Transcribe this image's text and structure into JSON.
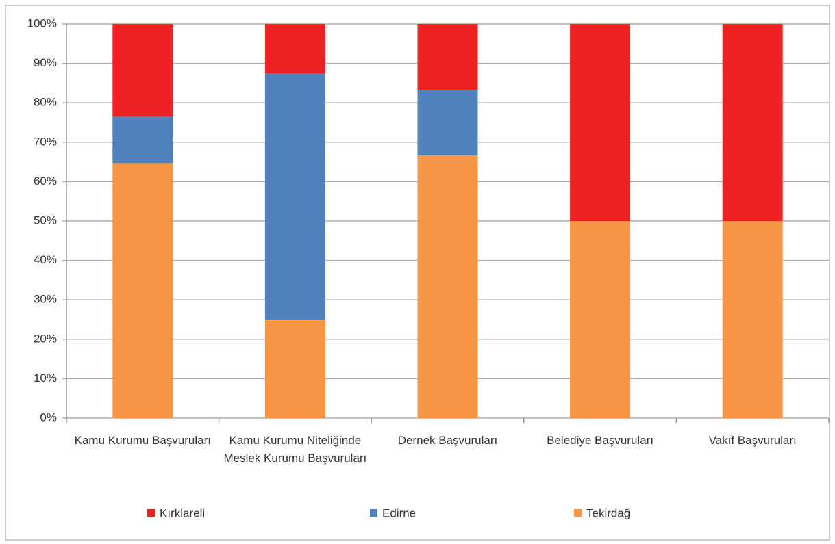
{
  "chart_data": {
    "type": "stacked_bar",
    "categories": [
      "Kamu Kurumu Başvuruları",
      "Kamu Kurumu Niteliğinde Meslek Kurumu Başvuruları",
      "Dernek Başvuruları",
      "Belediye Başvuruları",
      "Vakıf Başvuruları"
    ],
    "series": [
      {
        "name": "Kırklareli",
        "color": "#ee2222",
        "values": [
          23.5,
          12.5,
          16.7,
          50,
          50
        ]
      },
      {
        "name": "Edirne",
        "color": "#4f81bd",
        "values": [
          11.8,
          62.5,
          16.6,
          0,
          0
        ]
      },
      {
        "name": "Tekirdağ",
        "color": "#f79646",
        "values": [
          64.7,
          25,
          66.7,
          50,
          50
        ]
      }
    ],
    "ylim": [
      0,
      100
    ],
    "yticks": [
      {
        "value": 0,
        "label": "0%"
      },
      {
        "value": 10,
        "label": "10%"
      },
      {
        "value": 20,
        "label": "20%"
      },
      {
        "value": 30,
        "label": "30%"
      },
      {
        "value": 40,
        "label": "40%"
      },
      {
        "value": 50,
        "label": "50%"
      },
      {
        "value": 60,
        "label": "60%"
      },
      {
        "value": 70,
        "label": "70%"
      },
      {
        "value": 80,
        "label": "80%"
      },
      {
        "value": 90,
        "label": "90%"
      },
      {
        "value": 100,
        "label": "100%"
      }
    ],
    "grid": true,
    "legend": "bottom"
  }
}
